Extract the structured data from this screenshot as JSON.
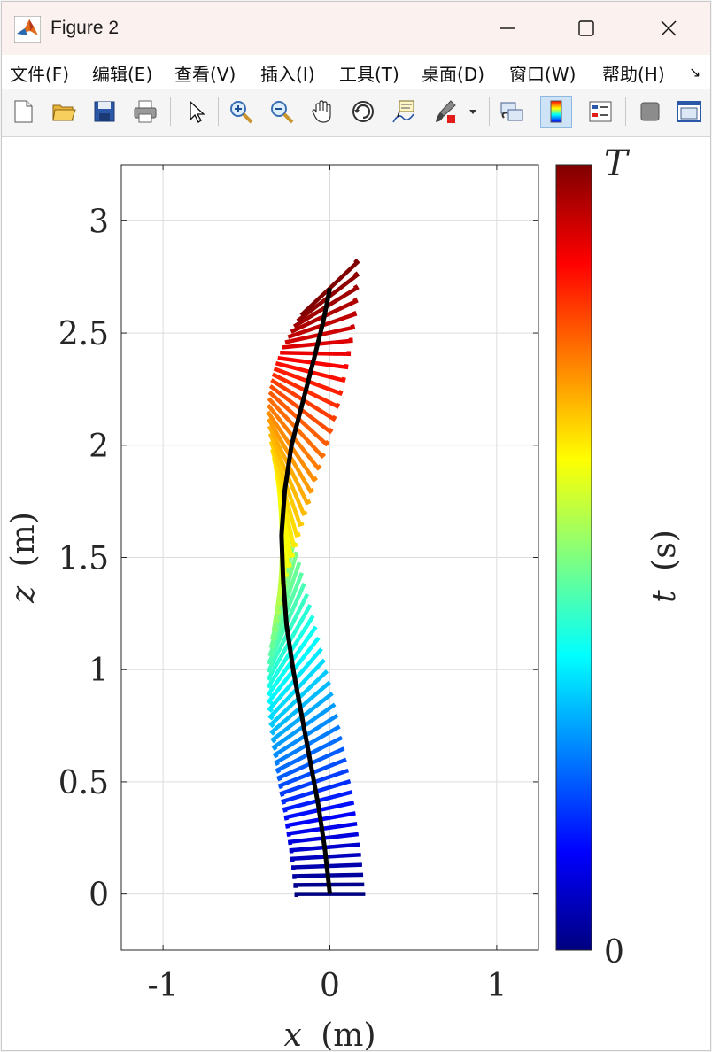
{
  "window": {
    "title": "Figure 2",
    "controls": [
      "minimize-icon",
      "maximize-icon",
      "close-icon"
    ]
  },
  "menu": {
    "items": [
      "文件(F)",
      "编辑(E)",
      "查看(V)",
      "插入(I)",
      "工具(T)",
      "桌面(D)",
      "窗口(W)",
      "帮助(H)"
    ],
    "more": "↘"
  },
  "toolbar": {
    "icons": [
      "new-figure-icon",
      "open-file-icon",
      "save-icon",
      "print-icon",
      "select-arrow-icon",
      "zoom-in-icon",
      "zoom-out-icon",
      "pan-hand-icon",
      "rotate-3d-icon",
      "data-cursor-icon",
      "brush-icon",
      "link-plot-icon",
      "colorbar-icon",
      "legend-icon",
      "hide-plot-tools-icon",
      "show-plot-tools-icon"
    ]
  },
  "chart_data": {
    "type": "line",
    "xlabel_var": "x",
    "xlabel_unit": "(m)",
    "ylabel_var": "z",
    "ylabel_unit": "(m)",
    "xlim": [
      -1.25,
      1.25
    ],
    "ylim": [
      -0.25,
      3.25
    ],
    "xticks": [
      -1,
      0,
      1
    ],
    "xtick_labels": [
      "-1",
      "0",
      "1"
    ],
    "yticks": [
      0,
      0.5,
      1,
      1.5,
      2,
      2.5,
      3
    ],
    "ytick_labels": [
      "0",
      "0.5",
      "1",
      "1.5",
      "2",
      "2.5",
      "3"
    ],
    "grid": true,
    "colormap": "jet",
    "colorbar": {
      "label_var": "t",
      "label_unit": "(s)",
      "top_label": "T",
      "bottom_label": "0"
    },
    "centerline": {
      "color": "#000000",
      "x": [
        0.0,
        -0.03,
        -0.07,
        -0.12,
        -0.17,
        -0.22,
        -0.26,
        -0.28,
        -0.29,
        -0.27,
        -0.23,
        -0.16,
        -0.09,
        -0.04,
        0.0
      ],
      "z": [
        0.0,
        0.2,
        0.4,
        0.6,
        0.8,
        1.0,
        1.2,
        1.4,
        1.6,
        1.8,
        2.0,
        2.2,
        2.4,
        2.55,
        2.7
      ]
    },
    "segments": {
      "count": 66,
      "half_width": 0.2,
      "angle_at_top_deg": 215,
      "angle_note": "segment orientation rotates progressively along height"
    }
  }
}
